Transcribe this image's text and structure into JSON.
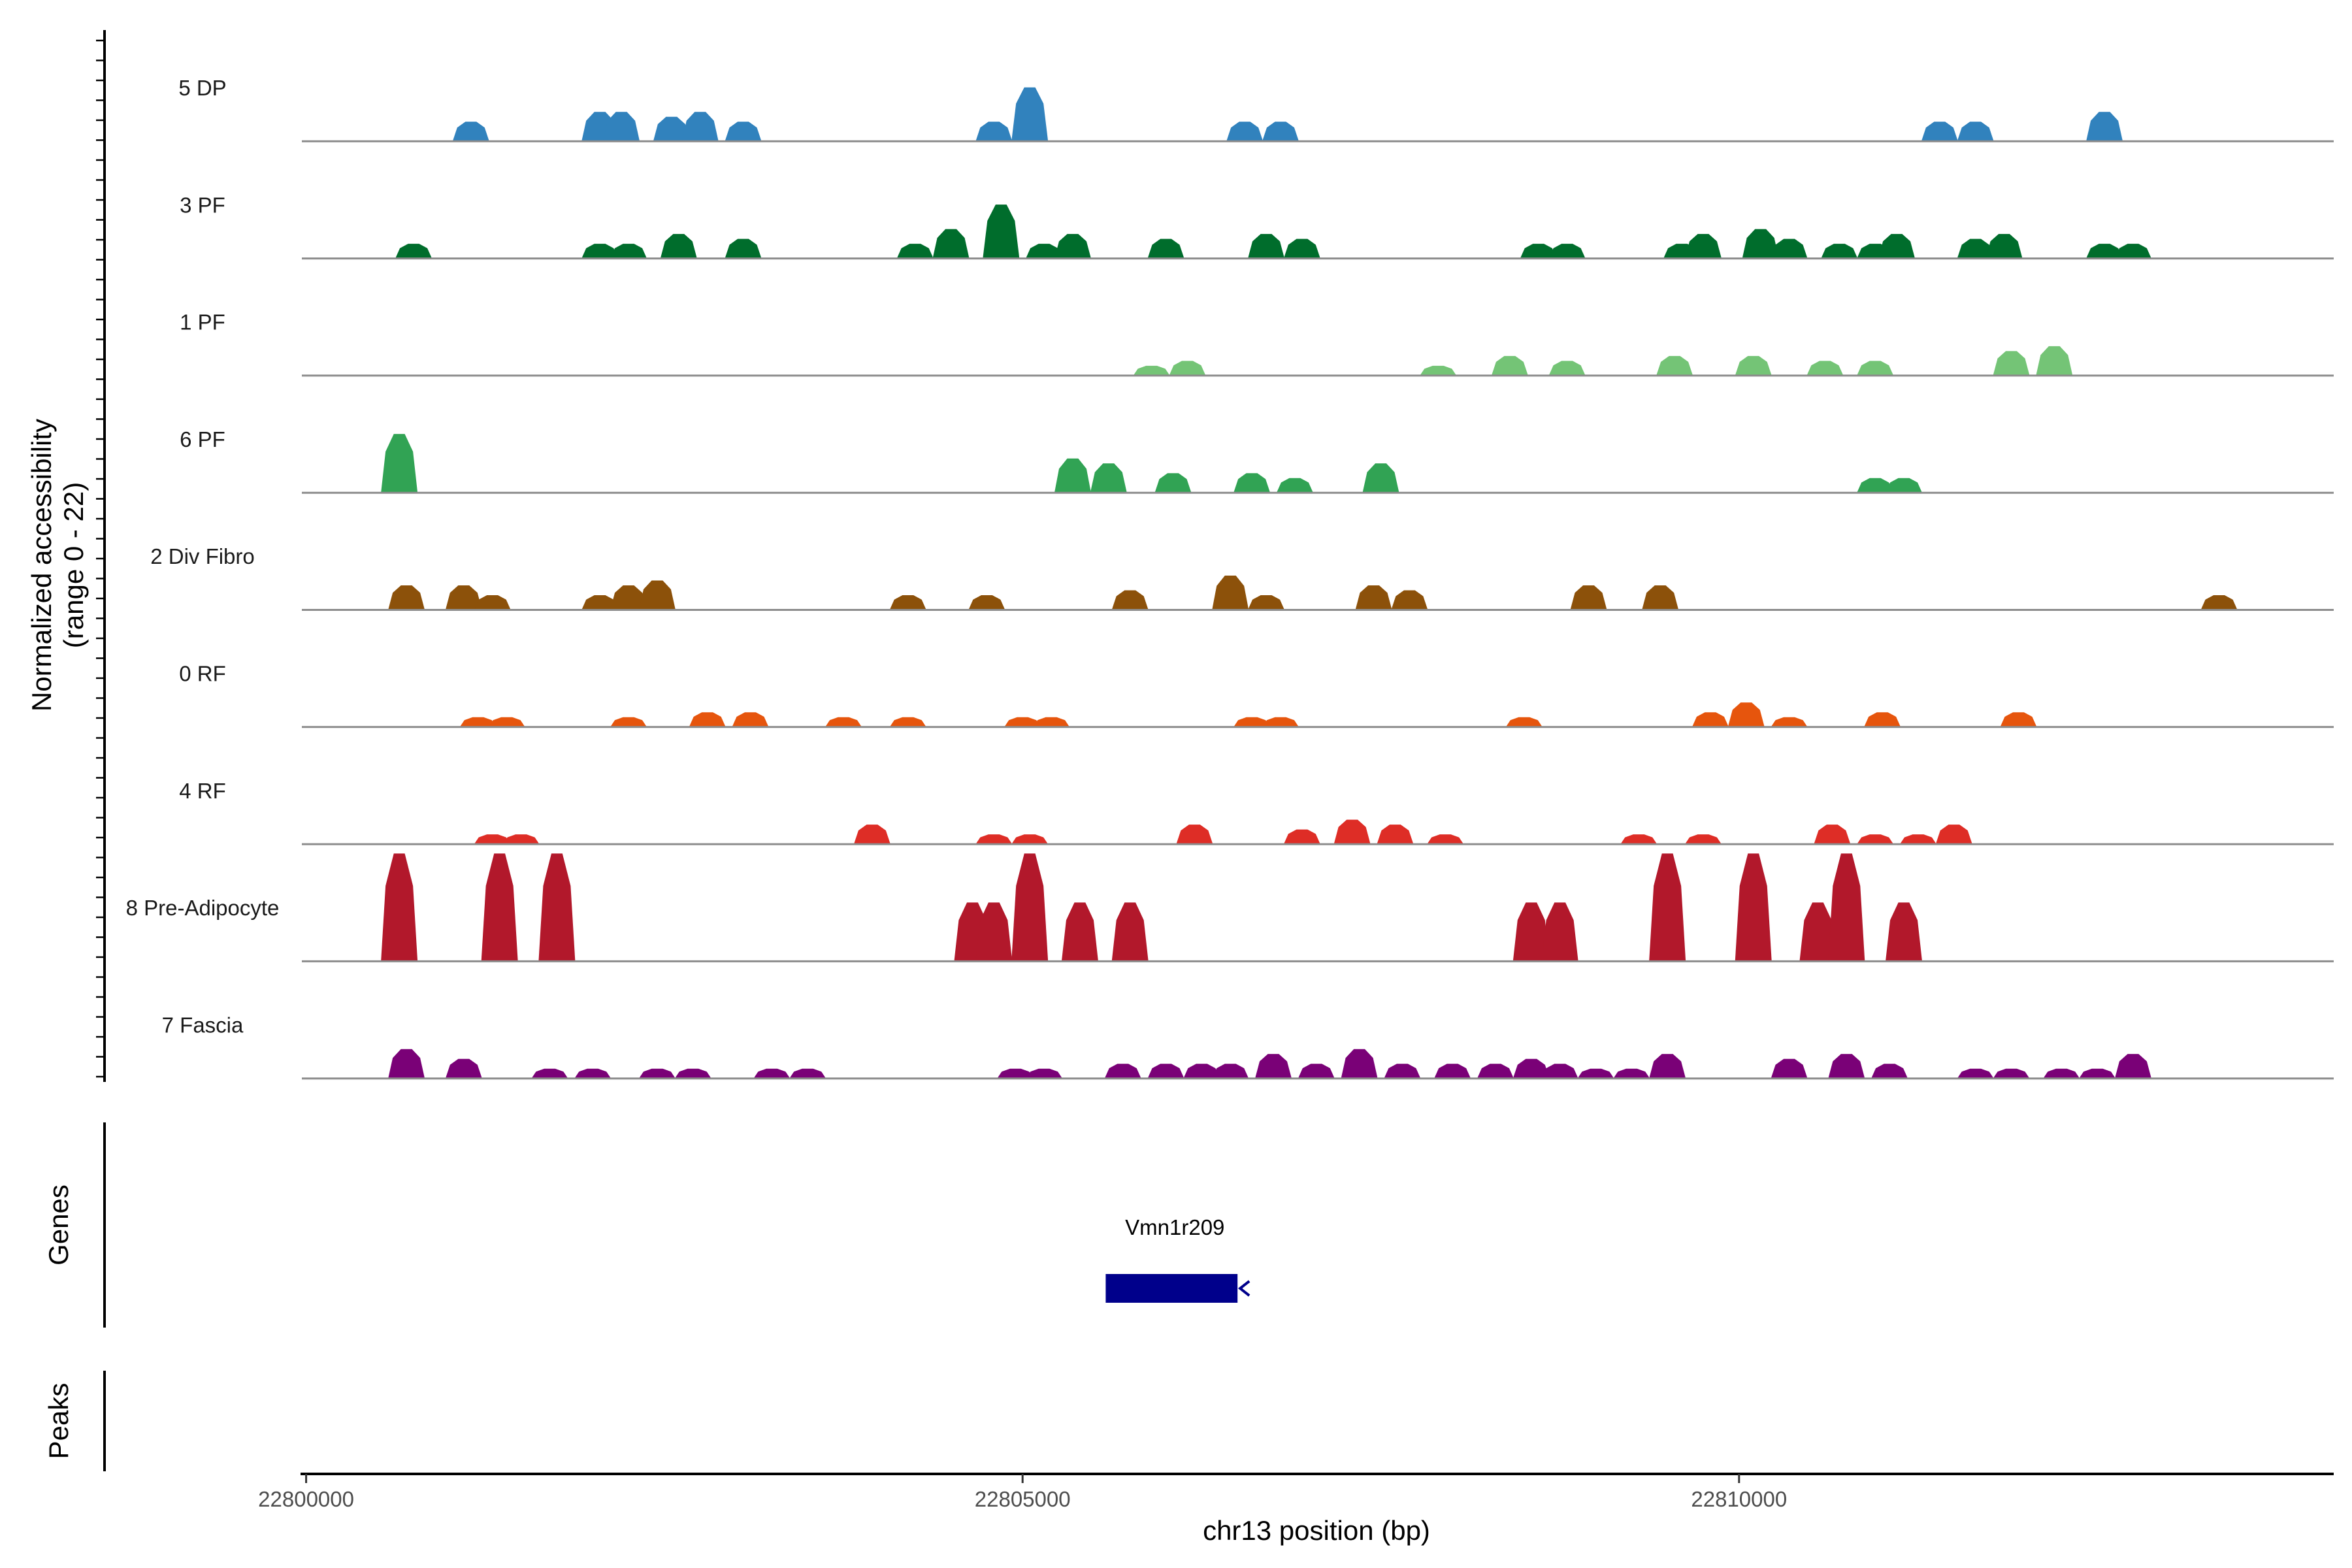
{
  "chart_data": {
    "type": "area",
    "title": "",
    "xlabel": "chr13 position (bp)",
    "ylabel_line1": "Normalized accessibility",
    "ylabel_line2": "(range 0 - 22)",
    "ylim": [
      0,
      22
    ],
    "xlim": [
      22799970,
      22814150
    ],
    "x_ticks": [
      22800000,
      22805000,
      22810000
    ],
    "x_tick_labels": [
      "22800000",
      "22805000",
      "22810000"
    ],
    "tracks": [
      {
        "name": "5 DP",
        "color": "#3182bd",
        "peaks": [
          [
            22801150,
            4
          ],
          [
            22802050,
            6
          ],
          [
            22802200,
            6
          ],
          [
            22802550,
            5
          ],
          [
            22802750,
            6
          ],
          [
            22803050,
            4
          ],
          [
            22804800,
            4
          ],
          [
            22805050,
            11
          ],
          [
            22806550,
            4
          ],
          [
            22806800,
            4
          ],
          [
            22811400,
            4
          ],
          [
            22811650,
            4
          ],
          [
            22812550,
            6
          ]
        ]
      },
      {
        "name": "3 PF",
        "color": "#006d2c",
        "peaks": [
          [
            22800750,
            3
          ],
          [
            22802050,
            3
          ],
          [
            22802250,
            3
          ],
          [
            22802600,
            5
          ],
          [
            22803050,
            4
          ],
          [
            22804250,
            3
          ],
          [
            22804500,
            6
          ],
          [
            22804850,
            11
          ],
          [
            22805150,
            3
          ],
          [
            22805350,
            5
          ],
          [
            22806000,
            4
          ],
          [
            22806700,
            5
          ],
          [
            22806950,
            4
          ],
          [
            22808600,
            3
          ],
          [
            22808800,
            3
          ],
          [
            22809600,
            3
          ],
          [
            22809750,
            5
          ],
          [
            22810150,
            6
          ],
          [
            22810350,
            4
          ],
          [
            22810700,
            3
          ],
          [
            22810950,
            3
          ],
          [
            22811100,
            5
          ],
          [
            22811650,
            4
          ],
          [
            22811850,
            5
          ],
          [
            22812550,
            3
          ],
          [
            22812750,
            3
          ]
        ]
      },
      {
        "name": "1 PF",
        "color": "#74c476",
        "peaks": [
          [
            22805900,
            2
          ],
          [
            22806150,
            3
          ],
          [
            22807900,
            2
          ],
          [
            22808400,
            4
          ],
          [
            22808800,
            3
          ],
          [
            22809550,
            4
          ],
          [
            22810100,
            4
          ],
          [
            22810600,
            3
          ],
          [
            22810950,
            3
          ],
          [
            22811900,
            5
          ],
          [
            22812200,
            6
          ]
        ]
      },
      {
        "name": "6 PF",
        "color": "#31a354",
        "peaks": [
          [
            22800650,
            12
          ],
          [
            22805350,
            7
          ],
          [
            22805600,
            6
          ],
          [
            22806050,
            4
          ],
          [
            22806600,
            4
          ],
          [
            22806900,
            3
          ],
          [
            22807500,
            6
          ],
          [
            22810950,
            3
          ],
          [
            22811150,
            3
          ]
        ]
      },
      {
        "name": "2 Div Fibro",
        "color": "#8c510a",
        "peaks": [
          [
            22800700,
            5
          ],
          [
            22801100,
            5
          ],
          [
            22801300,
            3
          ],
          [
            22802050,
            3
          ],
          [
            22802250,
            5
          ],
          [
            22802450,
            6
          ],
          [
            22804200,
            3
          ],
          [
            22804750,
            3
          ],
          [
            22805750,
            4
          ],
          [
            22806450,
            7
          ],
          [
            22806700,
            3
          ],
          [
            22807450,
            5
          ],
          [
            22807700,
            4
          ],
          [
            22808950,
            5
          ],
          [
            22809450,
            5
          ],
          [
            22813350,
            3
          ]
        ]
      },
      {
        "name": "0 RF",
        "color": "#e6550d",
        "peaks": [
          [
            22801200,
            2
          ],
          [
            22801400,
            2
          ],
          [
            22802250,
            2
          ],
          [
            22802800,
            3
          ],
          [
            22803100,
            3
          ],
          [
            22803750,
            2
          ],
          [
            22804200,
            2
          ],
          [
            22805000,
            2
          ],
          [
            22805200,
            2
          ],
          [
            22806600,
            2
          ],
          [
            22806800,
            2
          ],
          [
            22808500,
            2
          ],
          [
            22809800,
            3
          ],
          [
            22810050,
            5
          ],
          [
            22810350,
            2
          ],
          [
            22811000,
            3
          ],
          [
            22811950,
            3
          ]
        ]
      },
      {
        "name": "4 RF",
        "color": "#de2d26",
        "peaks": [
          [
            22801300,
            2
          ],
          [
            22801500,
            2
          ],
          [
            22803950,
            4
          ],
          [
            22804800,
            2
          ],
          [
            22805050,
            2
          ],
          [
            22806200,
            4
          ],
          [
            22806950,
            3
          ],
          [
            22807300,
            5
          ],
          [
            22807600,
            4
          ],
          [
            22807950,
            2
          ],
          [
            22809300,
            2
          ],
          [
            22809750,
            2
          ],
          [
            22810650,
            4
          ],
          [
            22810950,
            2
          ],
          [
            22811250,
            2
          ],
          [
            22811500,
            4
          ]
        ]
      },
      {
        "name": "8 Pre-Adipocyte",
        "color": "#b2182b",
        "peaks": [
          [
            22800650,
            22
          ],
          [
            22801350,
            22
          ],
          [
            22801750,
            22
          ],
          [
            22804650,
            12
          ],
          [
            22804800,
            12
          ],
          [
            22805050,
            22
          ],
          [
            22805400,
            12
          ],
          [
            22805750,
            12
          ],
          [
            22808550,
            12
          ],
          [
            22808750,
            12
          ],
          [
            22809500,
            22
          ],
          [
            22810100,
            22
          ],
          [
            22810550,
            12
          ],
          [
            22810750,
            22
          ],
          [
            22811150,
            12
          ]
        ]
      },
      {
        "name": "7 Fascia",
        "color": "#7a0177",
        "peaks": [
          [
            22800700,
            6
          ],
          [
            22801100,
            4
          ],
          [
            22801700,
            2
          ],
          [
            22802000,
            2
          ],
          [
            22802450,
            2
          ],
          [
            22802700,
            2
          ],
          [
            22803250,
            2
          ],
          [
            22803500,
            2
          ],
          [
            22804950,
            2
          ],
          [
            22805150,
            2
          ],
          [
            22805700,
            3
          ],
          [
            22806000,
            3
          ],
          [
            22806250,
            3
          ],
          [
            22806450,
            3
          ],
          [
            22806750,
            5
          ],
          [
            22807050,
            3
          ],
          [
            22807350,
            6
          ],
          [
            22807650,
            3
          ],
          [
            22808000,
            3
          ],
          [
            22808300,
            3
          ],
          [
            22808550,
            4
          ],
          [
            22808750,
            3
          ],
          [
            22809000,
            2
          ],
          [
            22809250,
            2
          ],
          [
            22809500,
            5
          ],
          [
            22810350,
            4
          ],
          [
            22810750,
            5
          ],
          [
            22811050,
            3
          ],
          [
            22811650,
            2
          ],
          [
            22811900,
            2
          ],
          [
            22812250,
            2
          ],
          [
            22812500,
            2
          ],
          [
            22812750,
            5
          ]
        ]
      }
    ],
    "genes": [
      {
        "name": "Vmn1r209",
        "start": 22805580,
        "end": 22806500,
        "strand": "-",
        "color": "#00008b"
      }
    ],
    "side_labels": {
      "genes": "Genes",
      "peaks": "Peaks"
    },
    "grid": false,
    "legend": "none"
  }
}
